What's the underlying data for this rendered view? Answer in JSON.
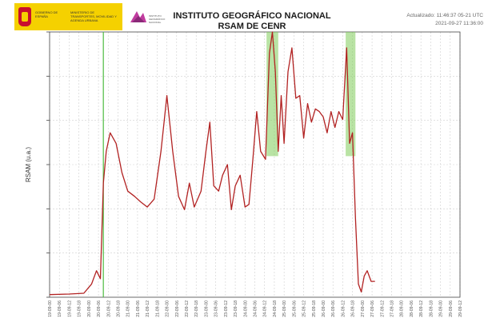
{
  "header": {
    "gov_text": "GOBIERNO DE ESPAÑA",
    "ministry_text": "MINISTERIO DE TRANSPORTES, MOVILIDAD Y AGENDA URBANA",
    "ign_text": "INSTITUTO GEOGRÁFICO NACIONAL",
    "title_line1": "INSTITUTO GEOGRÁFICO NACIONAL",
    "title_line2": "RSAM DE CENR",
    "updated": "Actualizado: 11:46:37 05-21 UTC",
    "date_range": "2021-09-27 11:36:00"
  },
  "colors": {
    "line": "#b22222",
    "highlight": "#7fcc5a",
    "marker": "#4cbb3f",
    "grid": "#cfcfcf"
  },
  "chart_data": {
    "type": "line",
    "title": "INSTITUTO GEOGRÁFICO NACIONAL RSAM DE CENR",
    "xlabel": "",
    "ylabel": "RSAM (u.a.)",
    "ylim": [
      0,
      1
    ],
    "xlim": [
      0,
      42
    ],
    "grid": true,
    "x_tick_labels": [
      "19-09-00",
      "19-09-06",
      "19-09-12",
      "19-09-18",
      "20-09-00",
      "20-09-06",
      "20-09-12",
      "20-09-18",
      "21-09-00",
      "21-09-06",
      "21-09-12",
      "21-09-18",
      "22-09-00",
      "22-09-06",
      "22-09-12",
      "22-09-18",
      "23-09-00",
      "23-09-06",
      "23-09-12",
      "23-09-18",
      "24-09-00",
      "24-09-06",
      "24-09-12",
      "24-09-18",
      "25-09-00",
      "25-09-06",
      "25-09-12",
      "25-09-18",
      "26-09-00",
      "26-09-06",
      "26-09-12",
      "26-09-18",
      "27-09-00",
      "27-09-06",
      "27-09-12",
      "27-09-18",
      "28-09-00",
      "28-09-06",
      "28-09-12",
      "28-09-18",
      "29-09-00",
      "29-09-06",
      "29-09-12"
    ],
    "eruption_marker_x": 5.5,
    "highlights": [
      [
        22.2,
        23.4
      ],
      [
        30.3,
        31.3
      ]
    ],
    "series": [
      {
        "x": [
          0,
          2,
          3.5,
          4.3,
          4.8,
          5.2,
          5.5,
          5.8,
          6.2,
          6.8,
          7.4,
          8,
          8.7,
          9.3,
          10,
          10.7,
          11.4,
          12,
          12.6,
          13.2,
          13.8,
          14.3,
          14.8,
          15.5,
          16,
          16.4,
          16.8,
          17.3,
          17.7,
          18.2,
          18.6,
          19,
          19.5,
          20,
          20.4,
          20.8,
          21.2,
          21.6,
          22.1,
          22.5,
          22.8,
          23.1,
          23.4,
          23.7,
          24,
          24.4,
          24.8,
          25.2,
          25.6,
          26,
          26.4,
          26.8,
          27.2,
          27.6,
          28,
          28.4,
          28.8,
          29.2,
          29.6,
          30,
          30.4,
          30.7,
          31,
          31.3,
          31.6,
          31.9,
          32.2,
          32.5,
          32.9,
          33.3
        ],
        "values": [
          0.01,
          0.012,
          0.015,
          0.05,
          0.1,
          0.07,
          0.43,
          0.55,
          0.62,
          0.58,
          0.47,
          0.4,
          0.38,
          0.36,
          0.34,
          0.37,
          0.55,
          0.76,
          0.55,
          0.38,
          0.33,
          0.43,
          0.34,
          0.4,
          0.55,
          0.66,
          0.42,
          0.4,
          0.46,
          0.5,
          0.33,
          0.42,
          0.46,
          0.34,
          0.35,
          0.52,
          0.7,
          0.55,
          0.52,
          0.92,
          1.0,
          0.85,
          0.55,
          0.76,
          0.58,
          0.85,
          0.94,
          0.75,
          0.76,
          0.6,
          0.73,
          0.66,
          0.71,
          0.7,
          0.68,
          0.62,
          0.7,
          0.64,
          0.7,
          0.67,
          0.94,
          0.58,
          0.62,
          0.3,
          0.05,
          0.02,
          0.08,
          0.1,
          0.06,
          0.06
        ]
      }
    ]
  }
}
